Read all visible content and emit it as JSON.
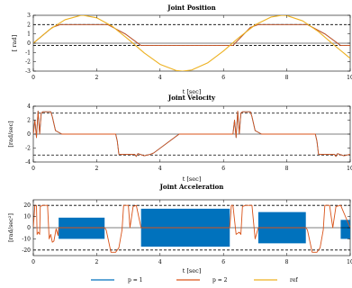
{
  "colors": {
    "p1": "#0072BD",
    "p2": "#D95319",
    "ref": "#EDB120"
  },
  "legend": [
    {
      "label": "p = 1",
      "color": "#0072BD"
    },
    {
      "label": "p = 2",
      "color": "#D95319"
    },
    {
      "label": "ref",
      "color": "#EDB120"
    }
  ],
  "chart_data": [
    {
      "type": "line",
      "title": "Joint Position",
      "xlabel": "t [sec]",
      "ylabel": "[ rad]",
      "xlim": [
        0,
        10
      ],
      "ylim": [
        -3,
        3
      ],
      "xticks": [
        0,
        2,
        4,
        6,
        8,
        10
      ],
      "yticks": [
        -3,
        -2,
        -1,
        0,
        1,
        2,
        3
      ],
      "limits": [
        2,
        -0.25
      ],
      "series": [
        {
          "name": "ref",
          "x": [
            0,
            0.5,
            1,
            1.5,
            1.57,
            2,
            2.5,
            3,
            3.5,
            4,
            4.5,
            4.71,
            5,
            5.5,
            6,
            6.5,
            7,
            7.5,
            7.85,
            8,
            8.5,
            9,
            9.5,
            10
          ],
          "y": [
            0,
            1.44,
            2.52,
            2.99,
            3.0,
            2.73,
            1.8,
            0.42,
            -1.05,
            -2.27,
            -2.93,
            -3.0,
            -2.88,
            -2.12,
            -0.84,
            0.64,
            1.97,
            2.81,
            3.0,
            2.97,
            2.4,
            1.24,
            -0.23,
            -1.63
          ]
        },
        {
          "name": "p = 1",
          "x": [
            0,
            0.6,
            0.85,
            2.35,
            2.9,
            3.4,
            6.3,
            6.85,
            7.1,
            8.65,
            9.2,
            9.7,
            10
          ],
          "y": [
            0,
            1.7,
            2.0,
            2.0,
            1.0,
            -0.25,
            -0.25,
            1.7,
            2.0,
            2.0,
            1.0,
            -0.25,
            -0.25
          ]
        },
        {
          "name": "p = 2",
          "x": [
            0,
            0.6,
            0.85,
            2.35,
            2.9,
            3.4,
            6.3,
            6.85,
            7.1,
            8.65,
            9.2,
            9.7,
            10
          ],
          "y": [
            0,
            1.7,
            2.0,
            2.0,
            1.0,
            -0.25,
            -0.25,
            1.7,
            2.0,
            2.0,
            1.0,
            -0.25,
            -0.25
          ]
        }
      ]
    },
    {
      "type": "line",
      "title": "Joint Velocity",
      "xlabel": "t [sec]",
      "ylabel": "[rad/sec]",
      "xlim": [
        0,
        10
      ],
      "ylim": [
        -4,
        4
      ],
      "xticks": [
        0,
        2,
        4,
        6,
        8,
        10
      ],
      "yticks": [
        -4,
        -2,
        0,
        2,
        4
      ],
      "limits": [
        3,
        -3
      ],
      "series": [
        {
          "name": "p = 1",
          "x": [
            0,
            0.05,
            0.1,
            0.15,
            0.2,
            0.25,
            0.3,
            0.55,
            0.6,
            0.7,
            0.9,
            2.6,
            2.65,
            2.7,
            3.2,
            3.25,
            3.3,
            3.5,
            3.7,
            3.8,
            4.6,
            4.7,
            6.3,
            6.35,
            6.4,
            6.45,
            6.5,
            6.55,
            6.6,
            6.85,
            6.9,
            7.0,
            7.2,
            8.9,
            8.95,
            9.0,
            9.5,
            9.55,
            9.6,
            9.8,
            10
          ],
          "y": [
            0,
            2,
            -0.5,
            3.3,
            0,
            3,
            3.2,
            3.2,
            2.5,
            0.5,
            0,
            0,
            -1,
            -2.9,
            -2.9,
            -3.2,
            -2.8,
            -3.1,
            -2.9,
            -2.7,
            0,
            0,
            0,
            2,
            -0.5,
            3.3,
            0,
            3,
            3.2,
            3.2,
            2.5,
            0.5,
            0,
            0,
            -1,
            -2.9,
            -2.9,
            -3.2,
            -2.8,
            -3.1,
            -2.9
          ]
        },
        {
          "name": "p = 2",
          "x": [
            0,
            0.05,
            0.1,
            0.15,
            0.2,
            0.25,
            0.3,
            0.55,
            0.6,
            0.7,
            0.9,
            2.6,
            2.65,
            2.7,
            3.2,
            3.25,
            3.3,
            3.5,
            3.7,
            3.8,
            4.6,
            4.7,
            6.3,
            6.35,
            6.4,
            6.45,
            6.5,
            6.55,
            6.6,
            6.85,
            6.9,
            7.0,
            7.2,
            8.9,
            8.95,
            9.0,
            9.5,
            9.55,
            9.6,
            9.8,
            10
          ],
          "y": [
            0,
            2,
            -0.5,
            3.3,
            0,
            3,
            3.2,
            3.2,
            2.5,
            0.5,
            0,
            0,
            -1,
            -2.9,
            -2.9,
            -3.2,
            -2.8,
            -3.1,
            -2.9,
            -2.7,
            0,
            0,
            0,
            2,
            -0.5,
            3.3,
            0,
            3,
            3.2,
            3.2,
            2.5,
            0.5,
            0,
            0,
            -1,
            -2.9,
            -2.9,
            -3.2,
            -2.8,
            -3.1,
            -2.9
          ]
        }
      ]
    },
    {
      "type": "line",
      "title": "Joint Acceleration",
      "xlabel": "t [sec]",
      "ylabel": "[rad/sec²]",
      "xlim": [
        0,
        10
      ],
      "ylim": [
        -25,
        25
      ],
      "xticks": [
        0,
        2,
        4,
        6,
        8,
        10
      ],
      "yticks": [
        -20,
        -10,
        0,
        10,
        20
      ],
      "limits": [
        20,
        -20
      ],
      "p1_bands": [
        {
          "x0": 0.8,
          "x1": 2.25,
          "y0": -10,
          "y1": 9
        },
        {
          "x0": 3.4,
          "x1": 6.2,
          "y0": -17,
          "y1": 17
        },
        {
          "x0": 7.1,
          "x1": 8.6,
          "y0": -14,
          "y1": 14
        },
        {
          "x0": 9.7,
          "x1": 10.0,
          "y0": -10,
          "y1": 7
        }
      ],
      "series": [
        {
          "name": "p = 2",
          "x": [
            0,
            0.05,
            0.1,
            0.12,
            0.16,
            0.2,
            0.22,
            0.3,
            0.38,
            0.45,
            0.5,
            0.55,
            0.6,
            0.65,
            0.72,
            0.78,
            0.8,
            2.25,
            2.3,
            2.45,
            2.6,
            2.7,
            2.8,
            2.85,
            2.9,
            3.0,
            3.05,
            3.15,
            3.25,
            3.4,
            6.2,
            6.25,
            6.3,
            6.4,
            6.5,
            6.55,
            6.6,
            6.7,
            6.8,
            6.9,
            7.0,
            7.1,
            8.6,
            8.65,
            8.8,
            8.95,
            9.05,
            9.15,
            9.2,
            9.3,
            9.35,
            9.45,
            9.55,
            9.7,
            10
          ],
          "y": [
            0,
            20,
            20,
            -6,
            -4,
            -6,
            19,
            20,
            20,
            20,
            -10,
            -6,
            -13,
            -12,
            -1,
            -7,
            0,
            0,
            -2,
            -22,
            -22,
            -18,
            -2,
            20,
            20,
            20,
            0,
            19,
            20,
            0,
            0,
            20,
            20,
            -6,
            -4,
            -6,
            19,
            20,
            20,
            20,
            -10,
            0,
            0,
            -2,
            -22,
            -22,
            -18,
            -2,
            20,
            20,
            20,
            0,
            19,
            20,
            0
          ]
        }
      ]
    }
  ]
}
